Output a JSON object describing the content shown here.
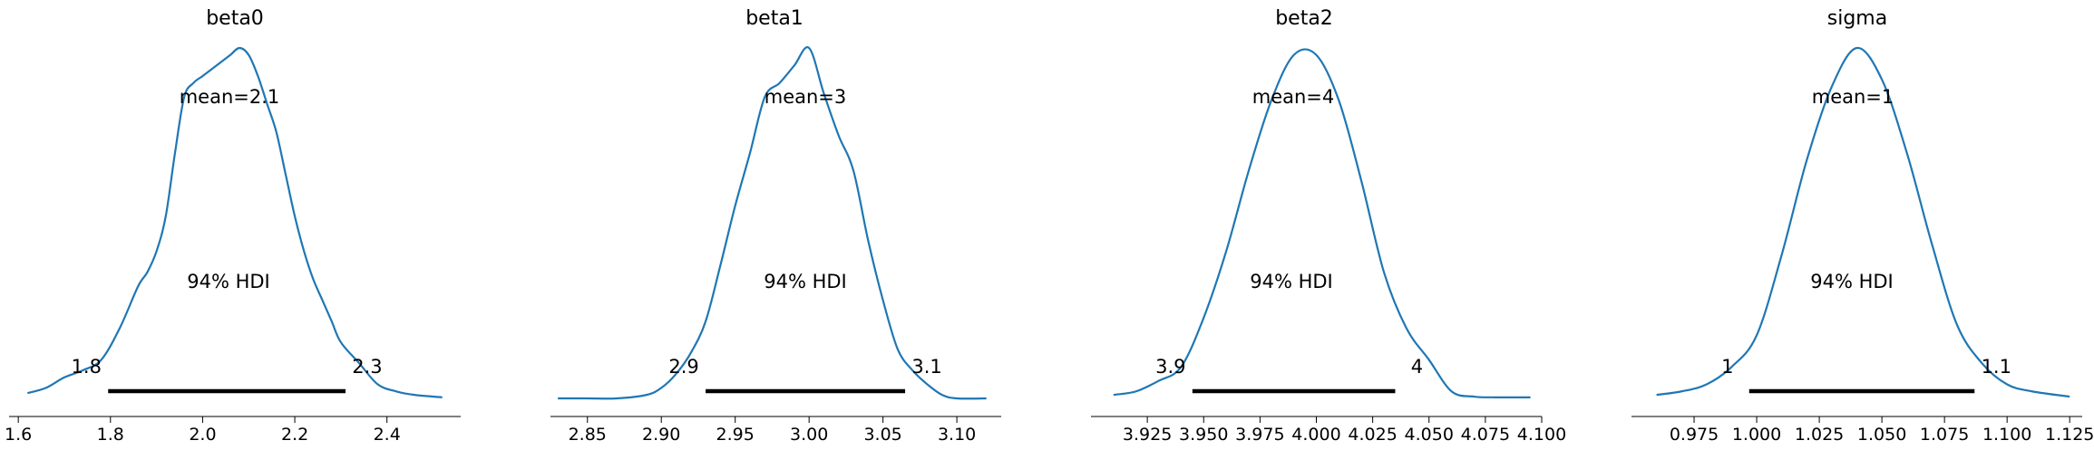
{
  "chart_data": [
    {
      "type": "line",
      "title": "beta0",
      "mean_label": "mean=2.1",
      "hdi_label": "94% HDI",
      "hdi": [
        1.8,
        2.3
      ],
      "hdi_exact": [
        1.795,
        2.31
      ],
      "hdi_low_label": "1.8",
      "hdi_high_label": "2.3",
      "xlim": [
        1.58,
        2.56
      ],
      "xticks": [
        1.6,
        1.8,
        2.0,
        2.2,
        2.4
      ],
      "xtick_labels": [
        "1.6",
        "1.8",
        "2.0",
        "2.2",
        "2.4"
      ],
      "density": {
        "x": [
          1.62,
          1.66,
          1.7,
          1.74,
          1.78,
          1.82,
          1.86,
          1.88,
          1.9,
          1.92,
          1.94,
          1.96,
          1.98,
          2.0,
          2.02,
          2.04,
          2.06,
          2.08,
          2.1,
          2.12,
          2.14,
          2.16,
          2.18,
          2.2,
          2.22,
          2.24,
          2.26,
          2.28,
          2.3,
          2.34,
          2.38,
          2.42,
          2.46,
          2.52
        ],
        "y": [
          0.015,
          0.03,
          0.06,
          0.08,
          0.11,
          0.2,
          0.32,
          0.36,
          0.42,
          0.52,
          0.7,
          0.86,
          0.9,
          0.92,
          0.94,
          0.96,
          0.98,
          1.0,
          0.98,
          0.92,
          0.84,
          0.76,
          0.64,
          0.52,
          0.42,
          0.34,
          0.28,
          0.22,
          0.16,
          0.1,
          0.04,
          0.02,
          0.01,
          0.003
        ]
      }
    },
    {
      "type": "line",
      "title": "beta1",
      "mean_label": "mean=3",
      "hdi_label": "94% HDI",
      "hdi": [
        2.9,
        3.1
      ],
      "hdi_exact": [
        2.93,
        3.065
      ],
      "hdi_low_label": "2.9",
      "hdi_high_label": "3.1",
      "xlim": [
        2.825,
        3.13
      ],
      "xticks": [
        2.85,
        2.9,
        2.95,
        3.0,
        3.05,
        3.1
      ],
      "xtick_labels": [
        "2.85",
        "2.90",
        "2.95",
        "3.00",
        "3.05",
        "3.10"
      ],
      "density": {
        "x": [
          2.83,
          2.85,
          2.87,
          2.89,
          2.9,
          2.91,
          2.92,
          2.93,
          2.94,
          2.95,
          2.96,
          2.97,
          2.98,
          2.99,
          3.0,
          3.01,
          3.02,
          3.03,
          3.04,
          3.05,
          3.06,
          3.07,
          3.08,
          3.09,
          3.1,
          3.12
        ],
        "y": [
          0.0,
          0.0,
          0.0,
          0.01,
          0.03,
          0.07,
          0.13,
          0.22,
          0.38,
          0.55,
          0.7,
          0.86,
          0.9,
          0.95,
          1.0,
          0.87,
          0.75,
          0.65,
          0.45,
          0.28,
          0.14,
          0.08,
          0.04,
          0.01,
          0.0,
          0.0
        ]
      }
    },
    {
      "type": "line",
      "title": "beta2",
      "mean_label": "mean=4",
      "hdi_label": "94% HDI",
      "hdi": [
        3.9,
        4.0
      ],
      "hdi_exact": [
        3.945,
        4.035
      ],
      "hdi_low_label": "3.9",
      "hdi_high_label": "4",
      "xlim": [
        3.9,
        4.1
      ],
      "xticks": [
        3.925,
        3.95,
        3.975,
        4.0,
        4.025,
        4.05,
        4.075,
        4.1
      ],
      "xtick_labels": [
        "3.925",
        "3.950",
        "3.975",
        "4.000",
        "4.025",
        "4.050",
        "4.075",
        "4.100"
      ],
      "density": {
        "x": [
          3.91,
          3.92,
          3.93,
          3.94,
          3.95,
          3.96,
          3.97,
          3.98,
          3.99,
          4.0,
          4.01,
          4.02,
          4.03,
          4.04,
          4.05,
          4.06,
          4.07,
          4.08,
          4.095
        ],
        "y": [
          0.01,
          0.02,
          0.05,
          0.09,
          0.23,
          0.42,
          0.65,
          0.85,
          0.98,
          0.98,
          0.85,
          0.62,
          0.36,
          0.2,
          0.11,
          0.02,
          0.005,
          0.003,
          0.003
        ]
      }
    },
    {
      "type": "line",
      "title": "sigma",
      "mean_label": "mean=1",
      "hdi_label": "94% HDI",
      "hdi": [
        1.0,
        1.1
      ],
      "hdi_exact": [
        0.997,
        1.087
      ],
      "hdi_low_label": "1",
      "hdi_high_label": "1.1",
      "xlim": [
        0.95,
        1.13
      ],
      "xticks": [
        0.975,
        1.0,
        1.025,
        1.05,
        1.075,
        1.1,
        1.125
      ],
      "xtick_labels": [
        "0.975",
        "1.000",
        "1.025",
        "1.050",
        "1.075",
        "1.100",
        "1.125"
      ],
      "density": {
        "x": [
          0.96,
          0.97,
          0.98,
          0.99,
          1.0,
          1.01,
          1.02,
          1.03,
          1.04,
          1.05,
          1.06,
          1.07,
          1.08,
          1.09,
          1.1,
          1.11,
          1.125
        ],
        "y": [
          0.01,
          0.02,
          0.04,
          0.09,
          0.18,
          0.41,
          0.68,
          0.89,
          1.0,
          0.91,
          0.7,
          0.44,
          0.21,
          0.1,
          0.04,
          0.02,
          0.005
        ]
      }
    }
  ]
}
